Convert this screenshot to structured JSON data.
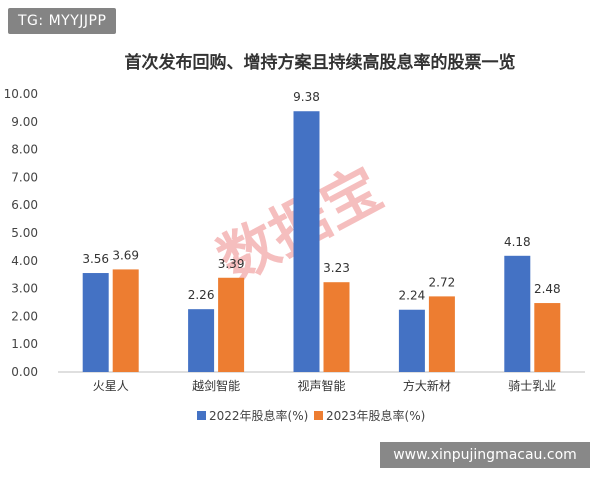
{
  "tag": {
    "text": "TG: MYYJJPP"
  },
  "watermark": {
    "site": "www.xinpujingmacau.com",
    "stamp": "数据宝"
  },
  "colors": {
    "series_2022": "#4472C4",
    "series_2023": "#ED7D31"
  },
  "chart_data": {
    "type": "bar",
    "title": "首次发布回购、增持方案且持续高股息率的股票一览",
    "xlabel": "",
    "ylabel": "",
    "categories": [
      "火星人",
      "越剑智能",
      "视声智能",
      "方大新材",
      "骑士乳业"
    ],
    "series": [
      {
        "name": "2022年股息率(%)",
        "values": [
          3.56,
          2.26,
          9.38,
          2.24,
          4.18
        ],
        "labels": [
          "3.56",
          "2.26",
          "9.38",
          "2.24",
          "4.18"
        ]
      },
      {
        "name": "2023年股息率(%)",
        "values": [
          3.69,
          3.39,
          3.23,
          2.72,
          2.48
        ],
        "labels": [
          "3.69",
          "3.39",
          "3.23",
          "2.72",
          "2.48"
        ]
      }
    ],
    "ylim": [
      0,
      10
    ],
    "yticks": [
      "0.00",
      "1.00",
      "2.00",
      "3.00",
      "4.00",
      "5.00",
      "6.00",
      "7.00",
      "8.00",
      "9.00",
      "10.00"
    ],
    "grid": false,
    "legend": "bottom"
  }
}
